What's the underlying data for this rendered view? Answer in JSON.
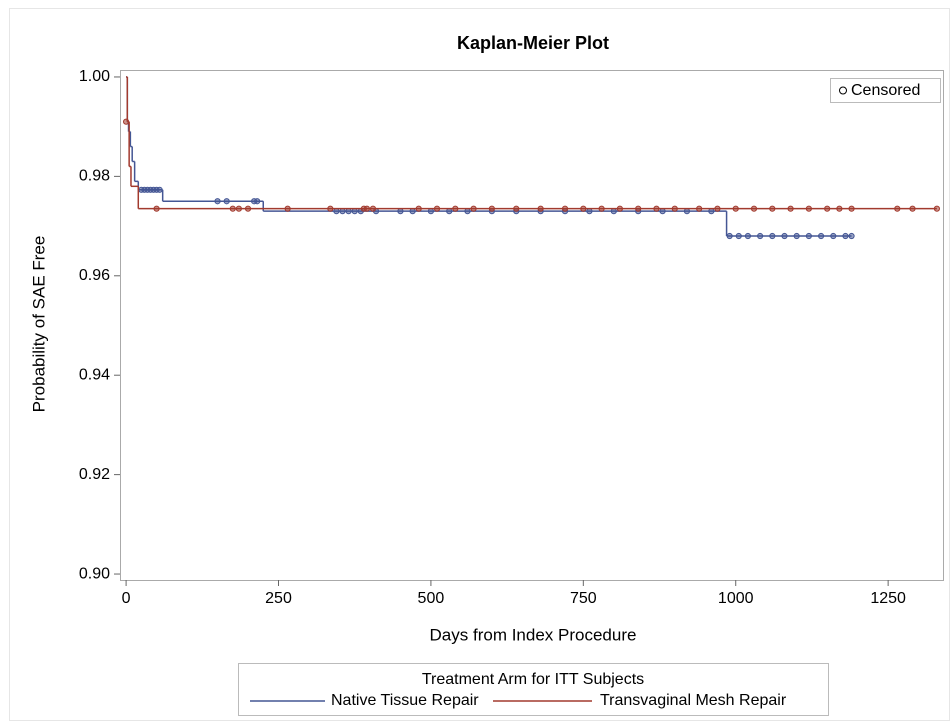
{
  "chart_data": {
    "type": "step",
    "title": "Kaplan-Meier Plot",
    "x_label": "Days from Index Procedure",
    "y_label": "Probability of SAE Free",
    "xlim": [
      -10,
      1340
    ],
    "ylim": [
      0.8988,
      1.0014
    ],
    "xticks": [
      0,
      250,
      500,
      750,
      1000,
      1250
    ],
    "yticks": [
      {
        "value": 0.9,
        "label": "0.90"
      },
      {
        "value": 0.92,
        "label": "0.92"
      },
      {
        "value": 0.94,
        "label": "0.94"
      },
      {
        "value": 0.96,
        "label": "0.96"
      },
      {
        "value": 0.98,
        "label": "0.98"
      },
      {
        "value": 1.0,
        "label": "1.00"
      }
    ],
    "censored_label": "Censored",
    "legend_title": "Treatment Arm for ITT Subjects",
    "series": [
      {
        "name": "Native Tissue Repair",
        "color": "#445694",
        "x": [
          0,
          2,
          4,
          7,
          10,
          14,
          20,
          60,
          225,
          985,
          1190
        ],
        "values": [
          1.0,
          0.991,
          0.989,
          0.986,
          0.983,
          0.979,
          0.9773,
          0.975,
          0.973,
          0.968,
          0.968
        ],
        "censored_x": [
          25,
          30,
          35,
          40,
          45,
          50,
          55,
          150,
          165,
          210,
          215,
          345,
          355,
          365,
          375,
          385,
          410,
          450,
          470,
          500,
          530,
          560,
          600,
          640,
          680,
          720,
          760,
          800,
          840,
          880,
          920,
          960,
          990,
          1005,
          1020,
          1040,
          1060,
          1080,
          1100,
          1120,
          1140,
          1160,
          1180,
          1190
        ],
        "censored_values": [
          0.9773,
          0.9773,
          0.9773,
          0.9773,
          0.9773,
          0.9773,
          0.9773,
          0.975,
          0.975,
          0.975,
          0.975,
          0.973,
          0.973,
          0.973,
          0.973,
          0.973,
          0.973,
          0.973,
          0.973,
          0.973,
          0.973,
          0.973,
          0.973,
          0.973,
          0.973,
          0.973,
          0.973,
          0.973,
          0.973,
          0.973,
          0.973,
          0.973,
          0.968,
          0.968,
          0.968,
          0.968,
          0.968,
          0.968,
          0.968,
          0.968,
          0.968,
          0.968,
          0.968,
          0.968
        ]
      },
      {
        "name": "Transvaginal Mesh Repair",
        "color": "#a23a2e",
        "x": [
          0,
          2,
          5,
          8,
          20,
          1330
        ],
        "values": [
          1.0,
          0.991,
          0.982,
          0.978,
          0.9735,
          0.9735
        ],
        "censored_x": [
          0,
          50,
          175,
          185,
          200,
          265,
          335,
          390,
          395,
          405,
          480,
          510,
          540,
          570,
          600,
          640,
          680,
          720,
          750,
          780,
          810,
          840,
          870,
          900,
          940,
          970,
          1000,
          1030,
          1060,
          1090,
          1120,
          1150,
          1170,
          1190,
          1265,
          1290,
          1330
        ],
        "censored_values": [
          0.991,
          0.9735,
          0.9735,
          0.9735,
          0.9735,
          0.9735,
          0.9735,
          0.9735,
          0.9735,
          0.9735,
          0.9735,
          0.9735,
          0.9735,
          0.9735,
          0.9735,
          0.9735,
          0.9735,
          0.9735,
          0.9735,
          0.9735,
          0.9735,
          0.9735,
          0.9735,
          0.9735,
          0.9735,
          0.9735,
          0.9735,
          0.9735,
          0.9735,
          0.9735,
          0.9735,
          0.9735,
          0.9735,
          0.9735,
          0.9735,
          0.9735,
          0.9735
        ]
      }
    ]
  }
}
